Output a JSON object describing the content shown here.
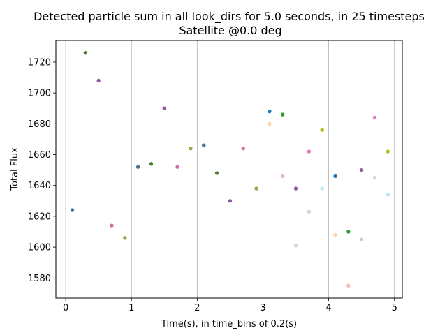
{
  "chart_data": {
    "type": "scatter",
    "title": "Detected particle sum in all look_dirs for 5.0 seconds, in 25 timesteps",
    "subtitle": "Satellite @0.0 deg",
    "xlabel": "Time(s), in time_bins of 0.2(s)",
    "ylabel": "Total Flux",
    "xlim": [
      -0.15,
      5.12
    ],
    "ylim": [
      1567,
      1734
    ],
    "xticks": [
      0,
      1,
      2,
      3,
      4,
      5
    ],
    "yticks": [
      1580,
      1600,
      1620,
      1640,
      1660,
      1680,
      1700,
      1720
    ],
    "grid": "vertical lines at x ticks",
    "points": [
      {
        "x": 0.1,
        "y": 1624,
        "color": "#4e6f91"
      },
      {
        "x": 0.3,
        "y": 1726,
        "color": "#4f7a28"
      },
      {
        "x": 0.5,
        "y": 1708,
        "color": "#8e5aa6"
      },
      {
        "x": 0.7,
        "y": 1614,
        "color": "#d46aa8"
      },
      {
        "x": 0.9,
        "y": 1606,
        "color": "#8cb04a"
      },
      {
        "x": 1.1,
        "y": 1652,
        "color": "#4e6f91"
      },
      {
        "x": 1.3,
        "y": 1654,
        "color": "#4f7a28"
      },
      {
        "x": 1.5,
        "y": 1690,
        "color": "#8e5aa6"
      },
      {
        "x": 1.7,
        "y": 1652,
        "color": "#d46aa8"
      },
      {
        "x": 1.9,
        "y": 1664,
        "color": "#8cb04a"
      },
      {
        "x": 2.1,
        "y": 1666,
        "color": "#4e6f91"
      },
      {
        "x": 2.3,
        "y": 1648,
        "color": "#4f7a28"
      },
      {
        "x": 2.5,
        "y": 1630,
        "color": "#8e5aa6"
      },
      {
        "x": 2.7,
        "y": 1664,
        "color": "#d46aa8"
      },
      {
        "x": 2.9,
        "y": 1638,
        "color": "#8cb04a"
      },
      {
        "x": 3.1,
        "y": 1688,
        "color": "#1f77b4"
      },
      {
        "x": 3.1,
        "y": 1680,
        "color": "#ffd2a8"
      },
      {
        "x": 3.3,
        "y": 1686,
        "color": "#2ca02c"
      },
      {
        "x": 3.3,
        "y": 1646,
        "color": "#e8b8a8"
      },
      {
        "x": 3.5,
        "y": 1638,
        "color": "#8e5aa6"
      },
      {
        "x": 3.5,
        "y": 1601,
        "color": "#d4d4d4"
      },
      {
        "x": 3.7,
        "y": 1662,
        "color": "#e377c2"
      },
      {
        "x": 3.7,
        "y": 1623,
        "color": "#d4d4d4"
      },
      {
        "x": 3.9,
        "y": 1676,
        "color": "#bcbd22"
      },
      {
        "x": 3.9,
        "y": 1638,
        "color": "#bfe8f0"
      },
      {
        "x": 4.1,
        "y": 1646,
        "color": "#1f77b4"
      },
      {
        "x": 4.1,
        "y": 1608,
        "color": "#ffd2a8"
      },
      {
        "x": 4.3,
        "y": 1610,
        "color": "#2ca02c"
      },
      {
        "x": 4.3,
        "y": 1575,
        "color": "#f4b8b8"
      },
      {
        "x": 4.5,
        "y": 1650,
        "color": "#8e5aa6"
      },
      {
        "x": 4.5,
        "y": 1605,
        "color": "#e0c4c8"
      },
      {
        "x": 4.7,
        "y": 1684,
        "color": "#e377c2"
      },
      {
        "x": 4.7,
        "y": 1645,
        "color": "#d4d4d4"
      },
      {
        "x": 4.9,
        "y": 1662,
        "color": "#bcbd22"
      },
      {
        "x": 4.9,
        "y": 1634,
        "color": "#aee8f2"
      }
    ]
  }
}
